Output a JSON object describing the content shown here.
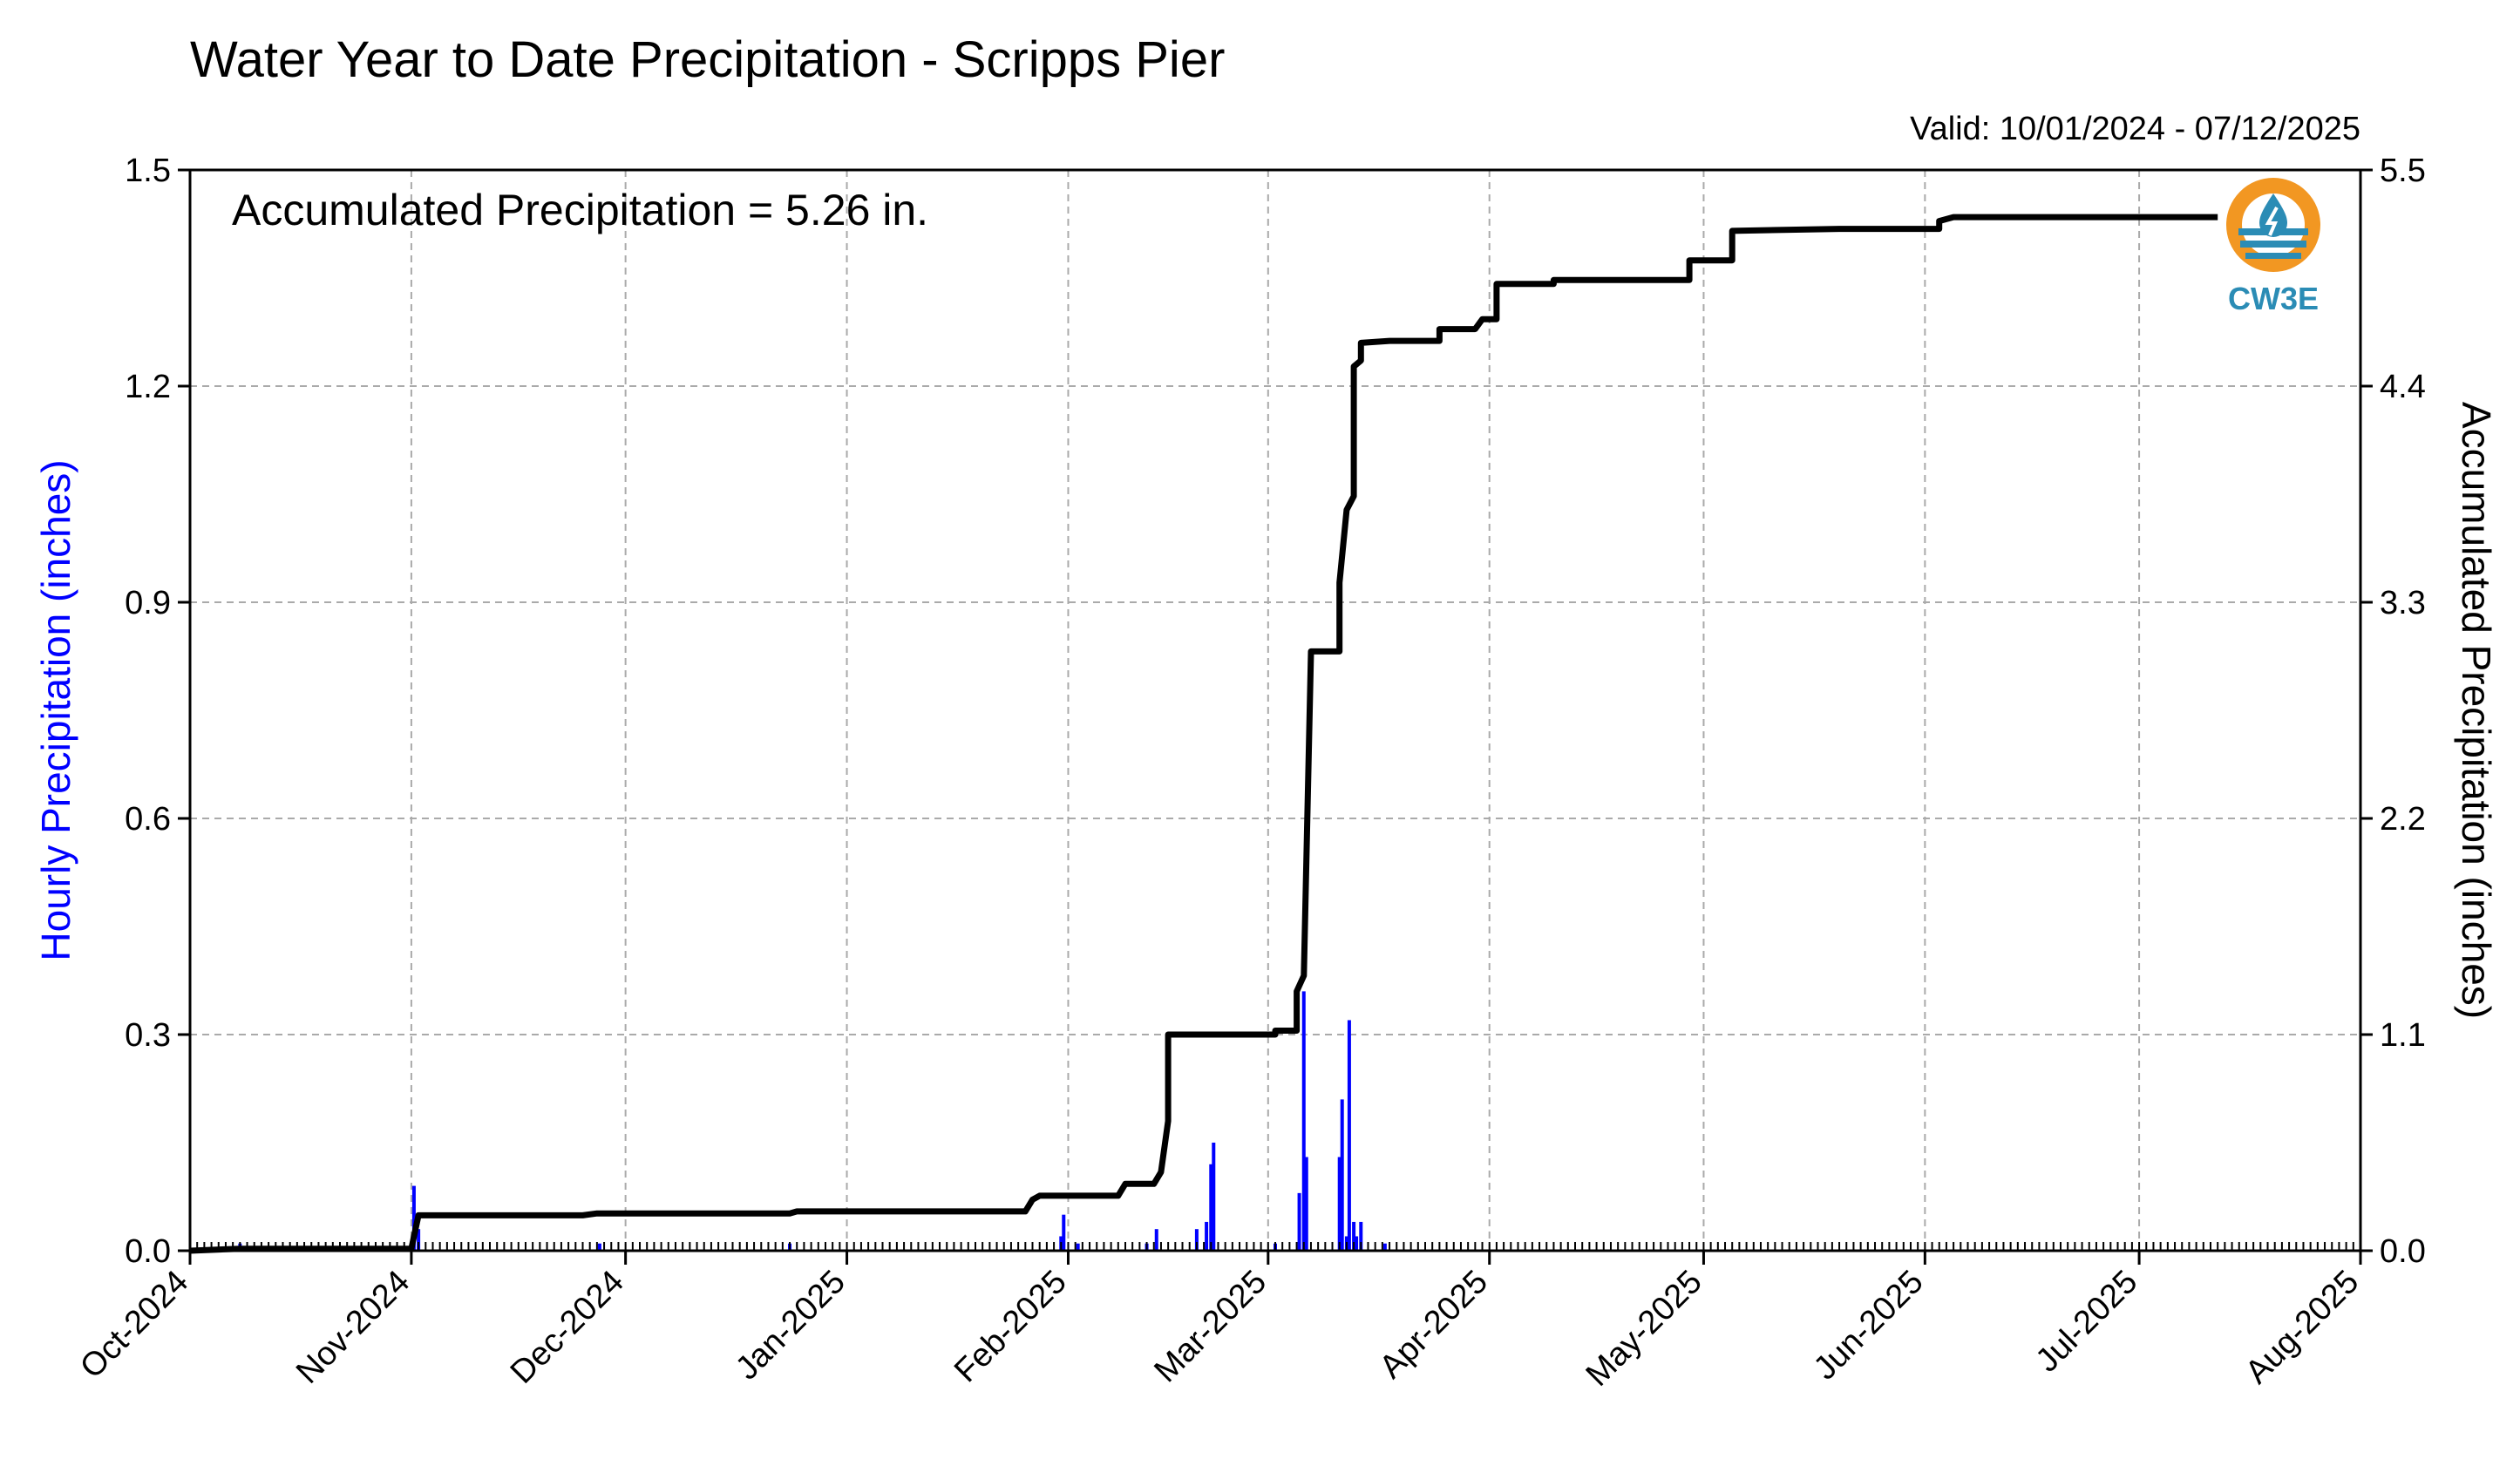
{
  "chart_data": {
    "type": "bar",
    "title": "Water Year to Date Precipitation - Scripps Pier",
    "valid_range": "Valid: 10/01/2024 - 07/12/2025",
    "annotation": "Accumulated Precipitation = 5.26 in.",
    "ylabel_left": "Hourly Precipitation (inches)",
    "ylabel_right": "Accumulated Precipitation (inches)",
    "xlim": [
      "2024-10-01",
      "2025-08-01"
    ],
    "ylim_left": [
      0,
      1.5
    ],
    "ylim_right": [
      0,
      5.5
    ],
    "yticks_left": [
      "0.0",
      "0.3",
      "0.6",
      "0.9",
      "1.2",
      "1.5"
    ],
    "yticks_right": [
      "0.0",
      "1.1",
      "2.2",
      "3.3",
      "4.4",
      "5.5"
    ],
    "xticks": [
      {
        "label": "Oct-2024",
        "date": "2024-10-01"
      },
      {
        "label": "Nov-2024",
        "date": "2024-11-01"
      },
      {
        "label": "Dec-2024",
        "date": "2024-12-01"
      },
      {
        "label": "Jan-2025",
        "date": "2025-01-01"
      },
      {
        "label": "Feb-2025",
        "date": "2025-02-01"
      },
      {
        "label": "Mar-2025",
        "date": "2025-03-01"
      },
      {
        "label": "Apr-2025",
        "date": "2025-04-01"
      },
      {
        "label": "May-2025",
        "date": "2025-05-01"
      },
      {
        "label": "Jun-2025",
        "date": "2025-06-01"
      },
      {
        "label": "Jul-2025",
        "date": "2025-07-01"
      },
      {
        "label": "Aug-2025",
        "date": "2025-08-01"
      }
    ],
    "grid": true,
    "hourly_color": "#0000ff",
    "accum_color": "#000000",
    "hourly_series": [
      {
        "x": "2024-10-08",
        "y": 0.01
      },
      {
        "x": "2024-11-01",
        "y": 0.09
      },
      {
        "x": "2024-11-02",
        "y": 0.03
      },
      {
        "x": "2024-11-27",
        "y": 0.01
      },
      {
        "x": "2024-12-24",
        "y": 0.01
      },
      {
        "x": "2025-01-31",
        "y": 0.05
      },
      {
        "x": "2025-01-31",
        "y": 0.02
      },
      {
        "x": "2025-02-02",
        "y": 0.01
      },
      {
        "x": "2025-02-12",
        "y": 0.01
      },
      {
        "x": "2025-02-13",
        "y": 0.03
      },
      {
        "x": "2025-02-19",
        "y": 0.03
      },
      {
        "x": "2025-02-20",
        "y": 0.04
      },
      {
        "x": "2025-02-21",
        "y": 0.12
      },
      {
        "x": "2025-02-21",
        "y": 0.15
      },
      {
        "x": "2025-03-02",
        "y": 0.01
      },
      {
        "x": "2025-03-05",
        "y": 0.08
      },
      {
        "x": "2025-03-06",
        "y": 0.36
      },
      {
        "x": "2025-03-06",
        "y": 0.13
      },
      {
        "x": "2025-03-11",
        "y": 0.13
      },
      {
        "x": "2025-03-11",
        "y": 0.21
      },
      {
        "x": "2025-03-12",
        "y": 0.02
      },
      {
        "x": "2025-03-12",
        "y": 0.32
      },
      {
        "x": "2025-03-13",
        "y": 0.04
      },
      {
        "x": "2025-03-13",
        "y": 0.02
      },
      {
        "x": "2025-03-14",
        "y": 0.04
      },
      {
        "x": "2025-03-17",
        "y": 0.01
      }
    ],
    "accum_series": [
      {
        "x": "2024-10-01",
        "y": 0.0
      },
      {
        "x": "2024-10-08",
        "y": 0.01
      },
      {
        "x": "2024-11-01",
        "y": 0.01
      },
      {
        "x": "2024-11-02",
        "y": 0.18
      },
      {
        "x": "2024-11-25",
        "y": 0.18
      },
      {
        "x": "2024-11-27",
        "y": 0.19
      },
      {
        "x": "2024-12-24",
        "y": 0.19
      },
      {
        "x": "2024-12-25",
        "y": 0.2
      },
      {
        "x": "2025-01-26",
        "y": 0.2
      },
      {
        "x": "2025-01-27",
        "y": 0.26
      },
      {
        "x": "2025-01-28",
        "y": 0.28
      },
      {
        "x": "2025-02-08",
        "y": 0.28
      },
      {
        "x": "2025-02-09",
        "y": 0.34
      },
      {
        "x": "2025-02-13",
        "y": 0.34
      },
      {
        "x": "2025-02-14",
        "y": 0.4
      },
      {
        "x": "2025-02-15",
        "y": 0.66
      },
      {
        "x": "2025-02-15",
        "y": 1.1
      },
      {
        "x": "2025-03-02",
        "y": 1.1
      },
      {
        "x": "2025-03-02",
        "y": 1.12
      },
      {
        "x": "2025-03-05",
        "y": 1.12
      },
      {
        "x": "2025-03-05",
        "y": 1.32
      },
      {
        "x": "2025-03-06",
        "y": 1.4
      },
      {
        "x": "2025-03-07",
        "y": 3.05
      },
      {
        "x": "2025-03-11",
        "y": 3.05
      },
      {
        "x": "2025-03-11",
        "y": 3.4
      },
      {
        "x": "2025-03-12",
        "y": 3.77
      },
      {
        "x": "2025-03-13",
        "y": 3.84
      },
      {
        "x": "2025-03-13",
        "y": 4.5
      },
      {
        "x": "2025-03-14",
        "y": 4.53
      },
      {
        "x": "2025-03-14",
        "y": 4.62
      },
      {
        "x": "2025-03-18",
        "y": 4.63
      },
      {
        "x": "2025-03-25",
        "y": 4.63
      },
      {
        "x": "2025-03-25",
        "y": 4.69
      },
      {
        "x": "2025-03-30",
        "y": 4.69
      },
      {
        "x": "2025-03-31",
        "y": 4.74
      },
      {
        "x": "2025-04-02",
        "y": 4.74
      },
      {
        "x": "2025-04-02",
        "y": 4.92
      },
      {
        "x": "2025-04-10",
        "y": 4.92
      },
      {
        "x": "2025-04-10",
        "y": 4.94
      },
      {
        "x": "2025-04-29",
        "y": 4.94
      },
      {
        "x": "2025-04-29",
        "y": 5.04
      },
      {
        "x": "2025-05-05",
        "y": 5.04
      },
      {
        "x": "2025-05-05",
        "y": 5.19
      },
      {
        "x": "2025-05-20",
        "y": 5.2
      },
      {
        "x": "2025-06-03",
        "y": 5.2
      },
      {
        "x": "2025-06-03",
        "y": 5.24
      },
      {
        "x": "2025-06-05",
        "y": 5.26
      },
      {
        "x": "2025-07-12",
        "y": 5.26
      }
    ]
  },
  "logo": {
    "text": "CW3E",
    "ring_color": "#f29722",
    "water_color": "#2b8cb5"
  }
}
